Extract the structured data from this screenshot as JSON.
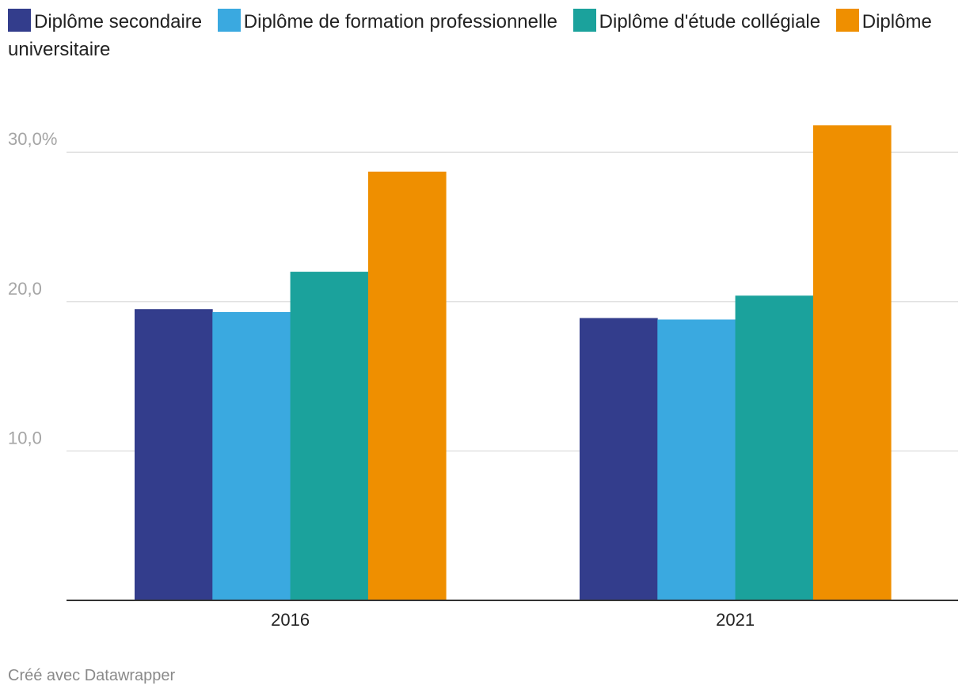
{
  "chart_data": {
    "type": "bar",
    "categories": [
      "2016",
      "2021"
    ],
    "series": [
      {
        "name": "Diplôme secondaire",
        "color": "#333d8c",
        "values": [
          19.5,
          18.9
        ]
      },
      {
        "name": "Diplôme de formation professionnelle",
        "color": "#3aa9e0",
        "values": [
          19.3,
          18.8
        ]
      },
      {
        "name": "Diplôme d'étude collégiale",
        "color": "#1ba29c",
        "values": [
          22.0,
          20.4
        ]
      },
      {
        "name": "Diplôme universitaire",
        "color": "#ef8f00",
        "values": [
          28.7,
          31.8
        ]
      }
    ],
    "ylim": [
      0,
      33
    ],
    "y_ticks": [
      {
        "value": 10,
        "label": "10,0"
      },
      {
        "value": 20,
        "label": "20,0"
      },
      {
        "value": 30,
        "label": "30,0%"
      }
    ],
    "grid": true,
    "legend_position": "top",
    "title": "",
    "xlabel": "",
    "ylabel": ""
  },
  "footer": {
    "credit": "Créé avec Datawrapper"
  }
}
